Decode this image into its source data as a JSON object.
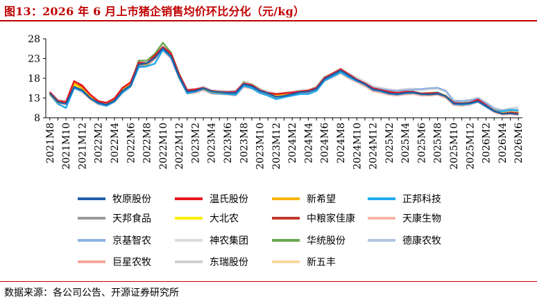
{
  "title": "图13：2026 年 6 月上市猪企销售均价环比分化（元/kg）",
  "source": "数据来源：各公司公告、开源证券研究所",
  "chart_data": {
    "type": "line",
    "title": "图13：2026 年 6 月上市猪企销售均价环比分化（元/kg）",
    "xlabel": "",
    "ylabel": "",
    "ylim": [
      8,
      28
    ],
    "yticks": [
      8,
      13,
      18,
      23,
      28
    ],
    "grid": false,
    "legend_position": "bottom",
    "x": [
      "2021M8",
      "2021M9",
      "2021M10",
      "2021M11",
      "2021M12",
      "2022M1",
      "2022M2",
      "2022M3",
      "2022M4",
      "2022M5",
      "2022M6",
      "2022M7",
      "2022M8",
      "2022M9",
      "2022M10",
      "2022M11",
      "2022M12",
      "2023M1",
      "2023M2",
      "2023M3",
      "2023M4",
      "2023M5",
      "2023M6",
      "2023M7",
      "2023M8",
      "2023M9",
      "2023M10",
      "2023M11",
      "2023M12",
      "2024M1",
      "2024M2",
      "2024M3",
      "2024M4",
      "2024M5",
      "2024M6",
      "2024M7",
      "2024M8",
      "2024M9",
      "2024M10",
      "2024M11",
      "2024M12",
      "2025M1",
      "2025M2",
      "2025M3",
      "2025M4",
      "2025M5",
      "2025M6",
      "2025M7",
      "2025M8",
      "2025M9",
      "2025M10",
      "2025M11",
      "2025M12",
      "2026M1",
      "2026M2",
      "2026M3",
      "2026M4",
      "2026M5",
      "2026M6"
    ],
    "xtick_labels": [
      "2021M8",
      "2021M10",
      "2021M12",
      "2022M2",
      "2022M4",
      "2022M6",
      "2022M8",
      "2022M10",
      "2022M12",
      "2023M2",
      "2023M4",
      "2023M6",
      "2023M8",
      "2023M10",
      "2023M12",
      "2024M2",
      "2024M4",
      "2024M6",
      "2024M8",
      "2024M10",
      "2024M12",
      "2025M2",
      "2025M4",
      "2025M6",
      "2025M8",
      "2025M10",
      "2025M12",
      "2026M2",
      "2026M4",
      "2026M6"
    ],
    "series": [
      {
        "name": "牧原股份",
        "color": "#1f5fa8",
        "values": [
          14.2,
          12.0,
          11.5,
          15.8,
          15.0,
          13.0,
          11.8,
          11.3,
          12.3,
          14.8,
          16.2,
          21.5,
          21.8,
          23.2,
          25.6,
          23.6,
          18.5,
          14.6,
          14.8,
          15.5,
          14.7,
          14.5,
          14.3,
          14.3,
          16.5,
          16.0,
          14.8,
          14.2,
          13.3,
          13.5,
          14.0,
          14.5,
          14.6,
          15.3,
          17.8,
          18.9,
          20.0,
          18.7,
          17.5,
          16.5,
          15.2,
          14.8,
          14.2,
          14.0,
          14.3,
          14.4,
          14.0,
          13.9,
          14.1,
          13.5,
          11.6,
          11.5,
          11.7,
          12.2,
          11.0,
          9.7,
          9.0,
          9.1,
          8.9
        ]
      },
      {
        "name": "温氏股份",
        "color": "#e6171e",
        "values": [
          14.5,
          12.3,
          12.0,
          17.3,
          16.2,
          13.9,
          12.2,
          11.8,
          12.9,
          15.6,
          17.0,
          22.0,
          21.8,
          23.8,
          25.9,
          24.3,
          19.0,
          15.0,
          15.2,
          15.6,
          14.8,
          14.6,
          14.5,
          14.6,
          16.7,
          16.3,
          15.0,
          14.3,
          14.0,
          14.2,
          14.4,
          14.7,
          14.9,
          15.6,
          18.1,
          19.2,
          20.3,
          19.0,
          17.7,
          16.7,
          15.5,
          15.0,
          14.6,
          14.3,
          14.6,
          14.6,
          14.1,
          14.2,
          14.3,
          13.4,
          11.8,
          11.6,
          11.8,
          12.6,
          11.2,
          9.7,
          9.0,
          9.3,
          9.1
        ]
      },
      {
        "name": "新希望",
        "color": "#f7b500",
        "values": [
          14.0,
          11.9,
          11.6,
          16.8,
          15.4,
          13.4,
          11.9,
          11.4,
          12.6,
          15.2,
          16.4,
          21.6,
          21.6,
          23.4,
          25.7,
          23.9,
          18.7,
          14.8,
          15.0,
          15.4,
          14.6,
          14.4,
          14.3,
          14.4,
          16.6,
          16.1,
          14.9,
          14.3,
          13.7,
          14.0,
          14.2,
          14.5,
          14.7,
          15.5,
          17.9,
          19.0,
          20.1,
          18.8,
          17.6,
          16.6,
          15.3,
          14.9,
          14.4,
          14.2,
          14.5,
          14.5,
          14.0,
          14.0,
          14.2,
          13.6,
          11.7,
          11.5,
          11.7,
          12.4,
          11.1,
          9.8,
          9.1,
          9.4,
          9.2
        ]
      },
      {
        "name": "正邦科技",
        "color": "#1eaaee",
        "values": [
          13.9,
          11.5,
          10.5,
          15.5,
          14.7,
          13.0,
          11.6,
          11.0,
          12.1,
          14.4,
          15.9,
          20.8,
          21.0,
          21.7,
          25.2,
          23.3,
          18.2,
          14.2,
          14.6,
          15.3,
          14.3,
          14.1,
          14.0,
          13.8,
          16.1,
          15.5,
          14.3,
          13.6,
          12.7,
          13.2,
          13.6,
          14.0,
          14.0,
          14.8,
          17.4,
          18.4,
          19.5,
          18.3,
          17.3,
          16.5,
          15.1,
          14.7,
          14.1,
          13.9,
          14.2,
          14.3,
          14.0,
          14.1,
          14.4,
          13.4,
          11.5,
          11.3,
          11.5,
          12.1,
          10.8,
          9.6,
          9.7,
          10.0,
          9.9
        ]
      },
      {
        "name": "天邦食品",
        "color": "#999999",
        "values": [
          14.1,
          11.8,
          11.6,
          15.9,
          14.8,
          12.8,
          11.5,
          11.2,
          12.1,
          14.6,
          16.0,
          21.2,
          21.3,
          23.2,
          25.5,
          23.5,
          18.3,
          14.5,
          14.6,
          15.4,
          14.5,
          14.3,
          14.2,
          14.1,
          16.3,
          15.8,
          14.7,
          14.0,
          13.2,
          13.6,
          14.0,
          14.4,
          14.5,
          15.2,
          17.6,
          18.7,
          19.8,
          18.5,
          17.4,
          16.4,
          15.0,
          14.7,
          14.2,
          14.0,
          14.3,
          14.3,
          13.9,
          13.9,
          14.0,
          13.4,
          11.6,
          11.4,
          11.6,
          12.2,
          11.0,
          9.6,
          9.0,
          9.1,
          8.9
        ]
      },
      {
        "name": "大北农",
        "color": "#ffef00",
        "values": [
          14.3,
          12.1,
          11.8,
          16.4,
          15.3,
          13.2,
          11.9,
          11.4,
          12.4,
          14.9,
          16.3,
          21.6,
          21.7,
          23.4,
          25.7,
          23.8,
          18.6,
          14.7,
          14.9,
          15.5,
          14.6,
          14.5,
          14.4,
          14.3,
          16.5,
          16.0,
          14.8,
          14.2,
          13.5,
          13.8,
          14.1,
          14.5,
          14.6,
          15.3,
          17.8,
          18.8,
          19.9,
          18.7,
          17.5,
          16.5,
          15.2,
          14.8,
          14.3,
          14.1,
          14.4,
          14.4,
          14.0,
          14.0,
          14.2,
          13.5,
          11.7,
          11.5,
          11.7,
          12.3,
          11.1,
          9.7,
          9.0,
          9.2,
          9.0
        ]
      },
      {
        "name": "中粮家佳康",
        "color": "#c0392b",
        "values": [
          14.4,
          12.2,
          11.9,
          17.0,
          16.0,
          13.6,
          12.1,
          11.7,
          12.7,
          15.3,
          16.7,
          21.8,
          21.8,
          23.6,
          25.8,
          24.1,
          18.8,
          14.9,
          15.1,
          15.5,
          14.7,
          14.5,
          14.4,
          14.5,
          16.6,
          16.2,
          14.9,
          14.3,
          13.8,
          14.1,
          14.3,
          14.6,
          14.8,
          15.4,
          18.0,
          19.1,
          20.2,
          18.9,
          17.6,
          16.6,
          15.4,
          15.0,
          14.5,
          14.3,
          14.5,
          14.5,
          14.0,
          14.1,
          14.2,
          13.4,
          11.8,
          11.6,
          11.8,
          12.5,
          11.2,
          9.8,
          9.1,
          9.3,
          9.1
        ]
      },
      {
        "name": "天康生物",
        "color": "#f2b5a7",
        "values": [
          14.0,
          11.7,
          11.4,
          15.6,
          14.5,
          12.7,
          11.4,
          11.0,
          12.0,
          14.3,
          15.8,
          21.0,
          21.1,
          22.8,
          25.0,
          23.0,
          18.0,
          14.1,
          14.3,
          15.0,
          14.1,
          14.0,
          13.9,
          13.6,
          15.8,
          15.4,
          14.2,
          13.7,
          13.2,
          13.5,
          13.8,
          14.1,
          14.2,
          14.9,
          17.3,
          18.3,
          19.3,
          18.0,
          17.0,
          16.0,
          14.7,
          14.3,
          13.8,
          13.6,
          13.9,
          14.0,
          13.6,
          13.6,
          13.8,
          13.0,
          11.2,
          11.0,
          11.3,
          12.0,
          10.7,
          9.4,
          8.8,
          8.9,
          8.7
        ]
      },
      {
        "name": "京基智农",
        "color": "#8fb2e0",
        "values": [
          14.2,
          12.0,
          11.7,
          16.1,
          15.1,
          13.1,
          11.8,
          11.3,
          12.3,
          14.8,
          16.2,
          21.5,
          21.6,
          23.3,
          25.6,
          23.7,
          18.5,
          14.6,
          14.8,
          15.5,
          14.6,
          14.4,
          14.3,
          14.3,
          16.5,
          16.0,
          14.8,
          14.2,
          13.4,
          13.7,
          14.1,
          14.5,
          14.6,
          15.3,
          17.7,
          18.8,
          19.9,
          18.8,
          17.7,
          16.8,
          15.6,
          15.3,
          15.0,
          14.8,
          15.0,
          15.1,
          15.3,
          15.5,
          15.6,
          14.9,
          12.3,
          12.2,
          12.4,
          12.9,
          11.7,
          10.3,
          9.7,
          10.0,
          9.9
        ]
      },
      {
        "name": "神农集团",
        "color": "#dcdcdc",
        "values": [
          14.6,
          12.4,
          12.1,
          16.6,
          15.6,
          13.5,
          12.1,
          11.6,
          12.6,
          15.1,
          16.5,
          21.8,
          22.0,
          23.7,
          26.0,
          24.1,
          18.9,
          15.0,
          15.2,
          15.8,
          14.9,
          14.8,
          14.7,
          14.7,
          16.9,
          16.4,
          15.2,
          14.6,
          13.9,
          14.2,
          14.5,
          14.9,
          15.0,
          15.7,
          18.2,
          19.3,
          20.4,
          19.2,
          18.1,
          17.1,
          15.9,
          15.5,
          15.1,
          14.9,
          15.2,
          15.3,
          15.1,
          15.2,
          15.5,
          14.7,
          12.2,
          12.1,
          12.3,
          12.9,
          11.7,
          10.4,
          9.8,
          10.1,
          10.0
        ]
      },
      {
        "name": "华统股份",
        "color": "#6aa84f",
        "values": [
          14.3,
          12.2,
          12.1,
          16.2,
          15.4,
          13.4,
          12.0,
          11.6,
          12.6,
          15.0,
          16.4,
          22.5,
          22.5,
          24.2,
          27.0,
          24.5,
          19.2,
          14.8,
          15.0,
          15.7,
          14.8,
          14.6,
          14.4,
          14.4,
          17.1,
          16.5,
          15.3,
          14.3,
          13.9,
          14.2,
          14.5,
          14.8,
          15.0,
          15.8,
          18.3,
          19.3,
          20.2,
          18.9,
          17.7,
          16.7,
          15.4,
          15.0,
          14.6,
          14.3,
          14.6,
          14.6,
          14.2,
          14.3,
          14.4,
          13.6,
          11.9,
          11.7,
          11.9,
          12.5,
          11.3,
          9.9,
          9.2,
          9.4,
          9.3
        ]
      },
      {
        "name": "德康农牧",
        "color": "#b0c4de",
        "values": [
          14.4,
          12.3,
          12.0,
          16.5,
          15.5,
          13.4,
          12.0,
          11.5,
          12.5,
          15.0,
          16.4,
          21.7,
          21.9,
          23.5,
          25.9,
          24.0,
          18.8,
          14.9,
          15.0,
          15.7,
          14.8,
          14.7,
          14.6,
          14.6,
          16.8,
          16.3,
          15.1,
          14.5,
          13.8,
          14.1,
          14.4,
          14.8,
          14.9,
          15.6,
          18.1,
          19.2,
          20.3,
          19.1,
          18.0,
          17.0,
          15.8,
          15.4,
          15.0,
          14.8,
          15.1,
          15.2,
          15.0,
          15.2,
          15.4,
          14.6,
          12.1,
          12.0,
          12.2,
          12.8,
          11.6,
          10.2,
          9.6,
          9.8,
          9.7
        ]
      },
      {
        "name": "巨星农牧",
        "color": "#f4a89a",
        "values": [
          14.1,
          11.9,
          11.6,
          15.9,
          14.9,
          12.9,
          11.6,
          11.1,
          12.1,
          14.6,
          16.0,
          21.3,
          21.4,
          23.1,
          25.4,
          23.4,
          18.3,
          14.4,
          14.6,
          15.3,
          14.4,
          14.2,
          14.1,
          14.0,
          16.2,
          15.7,
          14.5,
          13.9,
          13.3,
          13.6,
          13.9,
          14.3,
          14.4,
          15.1,
          17.5,
          18.6,
          19.6,
          18.3,
          17.2,
          16.2,
          14.9,
          14.5,
          14.0,
          13.8,
          14.1,
          14.2,
          13.7,
          13.7,
          13.9,
          13.2,
          11.4,
          11.2,
          11.4,
          12.1,
          10.9,
          9.5,
          8.9,
          9.0,
          8.8
        ]
      },
      {
        "name": "东瑞股份",
        "color": "#cfcfcf",
        "values": [
          14.5,
          12.5,
          12.2,
          16.9,
          15.9,
          13.8,
          12.3,
          11.8,
          12.8,
          15.4,
          16.8,
          22.1,
          22.2,
          24.0,
          26.2,
          24.3,
          19.1,
          15.1,
          15.3,
          15.9,
          15.0,
          14.9,
          14.8,
          14.8,
          17.0,
          16.5,
          15.3,
          14.7,
          14.1,
          14.4,
          14.6,
          15.0,
          15.1,
          15.8,
          18.3,
          19.4,
          20.5,
          19.3,
          18.2,
          17.2,
          16.0,
          15.6,
          15.2,
          15.0,
          15.3,
          15.4,
          15.2,
          15.3,
          15.6,
          14.8,
          12.4,
          12.3,
          12.5,
          13.1,
          11.9,
          10.5,
          10.0,
          10.4,
          10.6
        ]
      },
      {
        "name": "新五丰",
        "color": "#fad7a0",
        "values": [
          14.2,
          12.1,
          11.8,
          16.3,
          15.2,
          13.2,
          11.9,
          11.4,
          12.4,
          14.9,
          16.3,
          21.6,
          21.7,
          23.4,
          25.6,
          23.7,
          18.6,
          14.7,
          14.9,
          15.5,
          14.6,
          14.5,
          14.4,
          14.3,
          16.5,
          16.0,
          14.8,
          14.2,
          13.6,
          13.9,
          14.2,
          14.5,
          14.7,
          15.4,
          17.8,
          18.9,
          20.0,
          18.7,
          17.5,
          16.5,
          15.2,
          14.8,
          14.3,
          14.1,
          14.4,
          14.4,
          13.9,
          14.0,
          14.1,
          13.4,
          11.6,
          11.4,
          11.6,
          12.3,
          11.0,
          9.6,
          9.0,
          9.2,
          9.0
        ]
      }
    ]
  }
}
